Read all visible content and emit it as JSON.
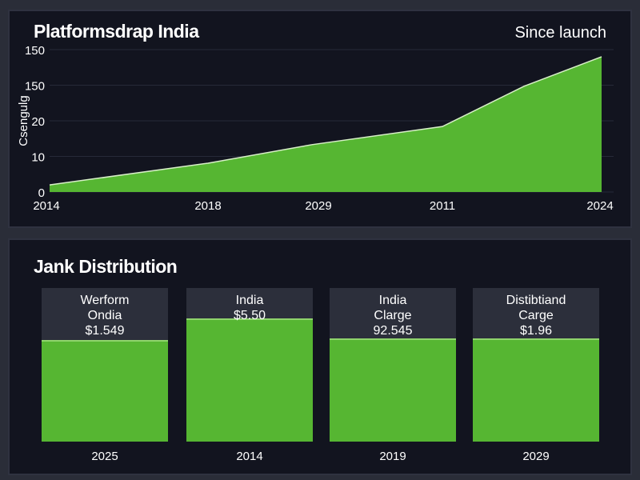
{
  "top_panel": {
    "title": "Platformsdrap India",
    "subtitle": "Since launch"
  },
  "chart_data": [
    {
      "type": "area",
      "title": "Platformsdrap India",
      "subtitle": "Since launch",
      "ylabel": "Csengulg",
      "xlabel": "",
      "y_tick_labels": [
        "0",
        "10",
        "20",
        "150",
        "150"
      ],
      "x_tick_labels": [
        "2014",
        "2018",
        "2029",
        "2011",
        "2024"
      ],
      "grid": true,
      "color": "#56b632",
      "series": [
        {
          "values": [
            2.0,
            8.1,
            13.3,
            18.4,
            29.7,
            38.0
          ]
        }
      ]
    },
    {
      "type": "bar",
      "title": "Jank Distribution",
      "categories": [
        "2025",
        "2014",
        "2019",
        "2029"
      ],
      "values": [
        0.65,
        0.79,
        0.66,
        0.66
      ],
      "color": "#56b632",
      "bar_labels": [
        [
          "Werform",
          "Ondia",
          "$1.549"
        ],
        [
          "India",
          "$5.50"
        ],
        [
          "India",
          "Clarge",
          "92.545"
        ],
        [
          "Distibtiand",
          "Carge",
          "$1.96"
        ]
      ]
    }
  ],
  "bottom_panel": {
    "title": "Jank Distribution"
  }
}
